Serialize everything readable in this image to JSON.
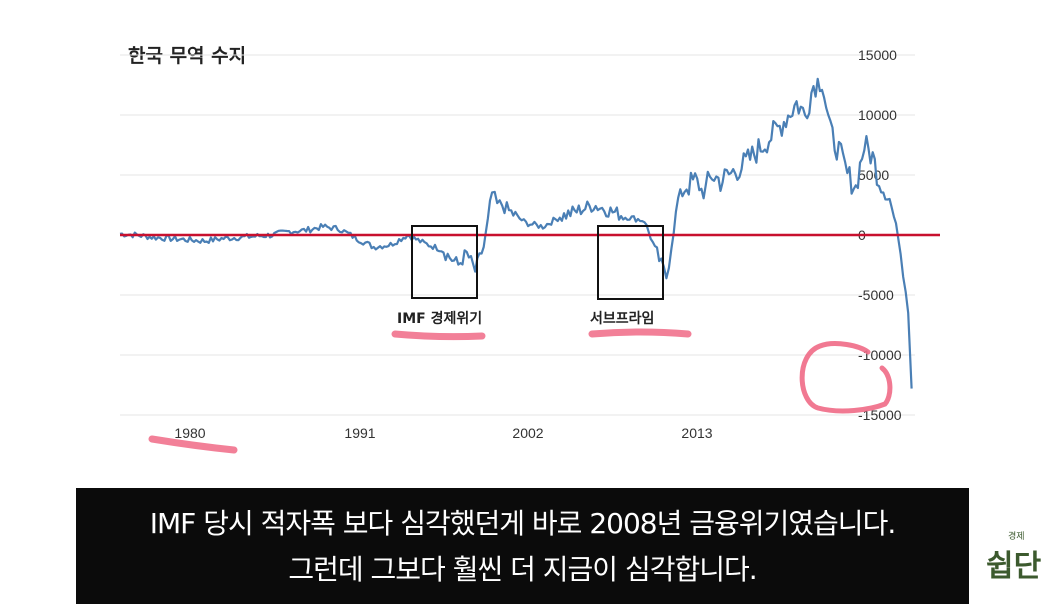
{
  "chart_data": {
    "type": "line",
    "title": "한국 무역 수지",
    "x_ticks": [
      "1980",
      "1991",
      "2002",
      "2013"
    ],
    "y_ticks": [
      "15000",
      "10000",
      "5000",
      "0",
      "-5000",
      "-10000",
      "-15000"
    ],
    "ylim": [
      -15000,
      15000
    ],
    "xlim": [
      1976,
      2023
    ],
    "grid": "horizontal",
    "zero_line": {
      "value": 0,
      "color": "#c8102e"
    },
    "series": [
      {
        "color": "#4a7fb5",
        "x": [
          1976,
          1977,
          1978,
          1979,
          1980,
          1981,
          1982,
          1983,
          1984,
          1985,
          1986,
          1987,
          1988,
          1989,
          1990,
          1991,
          1992,
          1993,
          1994,
          1995,
          1996,
          1996.5,
          1997,
          1997.5,
          1998,
          1998.3,
          1998.6,
          1999,
          2000,
          2001,
          2002,
          2003,
          2004,
          2005,
          2006,
          2007,
          2008,
          2008.3,
          2008.6,
          2009,
          2009.5,
          2010,
          2010.5,
          2011,
          2011.5,
          2012,
          2013,
          2014,
          2015,
          2016,
          2016.5,
          2017,
          2017.5,
          2018,
          2018.5,
          2019,
          2019.5,
          2020,
          2020.5,
          2021,
          2021.5,
          2022,
          2022.3,
          2022.6,
          2022.8
        ],
        "values": [
          100,
          0,
          -200,
          -300,
          -400,
          -500,
          -300,
          -200,
          -100,
          0,
          300,
          400,
          700,
          500,
          -300,
          -1000,
          -800,
          0,
          -700,
          -1200,
          -2500,
          -1500,
          -3000,
          -1000,
          3500,
          2500,
          2500,
          2000,
          1000,
          700,
          1500,
          2000,
          2500,
          2000,
          1500,
          1200,
          -2500,
          -3500,
          -1000,
          3000,
          4000,
          4500,
          3500,
          5000,
          4500,
          5000,
          6000,
          7500,
          9000,
          11000,
          10000,
          12500,
          13000,
          8500,
          7000,
          5000,
          4000,
          7500,
          6500,
          4000,
          3000,
          0,
          -3000,
          -6500,
          -12800
        ]
      }
    ],
    "annotations": [
      "IMF 경제위기",
      "서브프라임"
    ]
  },
  "subtitle": {
    "line1": "IMF 당시 적자폭 보다 심각했던게 바로 2008년 금융위기였습니다.",
    "line2": "그런데 그보다 훨씬 더 지금이 심각합니다."
  },
  "logo": {
    "small": "경제",
    "big": "쉽단"
  },
  "colors": {
    "line": "#4a7fb5",
    "zero_line": "#c8102e",
    "highlight": "#f06a86"
  }
}
